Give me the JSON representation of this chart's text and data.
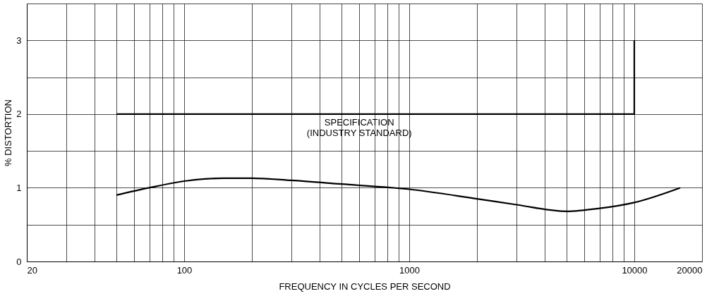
{
  "chart_data": {
    "type": "line",
    "xlabel": "FREQUENCY IN CYCLES PER SECOND",
    "ylabel": "% DISTORTION",
    "log": "x",
    "grid": true,
    "marker": "none",
    "line_style": "solid",
    "xlim": [
      20,
      20000
    ],
    "ylim": [
      0,
      3.5
    ],
    "xticks": [
      20,
      {
        "value": 30,
        "label": null
      },
      {
        "value": 40,
        "label": null
      },
      {
        "value": 50,
        "label": null
      },
      {
        "value": 60,
        "label": null
      },
      {
        "value": 70,
        "label": null
      },
      {
        "value": 80,
        "label": null
      },
      {
        "value": 90,
        "label": null
      },
      100,
      {
        "value": 200,
        "label": null
      },
      {
        "value": 300,
        "label": null
      },
      {
        "value": 400,
        "label": null
      },
      {
        "value": 500,
        "label": null
      },
      {
        "value": 600,
        "label": null
      },
      {
        "value": 700,
        "label": null
      },
      {
        "value": 800,
        "label": null
      },
      {
        "value": 900,
        "label": null
      },
      1000,
      {
        "value": 2000,
        "label": null
      },
      {
        "value": 3000,
        "label": null
      },
      {
        "value": 4000,
        "label": null
      },
      {
        "value": 5000,
        "label": null
      },
      {
        "value": 6000,
        "label": null
      },
      {
        "value": 7000,
        "label": null
      },
      {
        "value": 8000,
        "label": null
      },
      {
        "value": 9000,
        "label": null
      },
      10000,
      20000
    ],
    "yticks": [
      0,
      {
        "value": 0.5,
        "label": null
      },
      1,
      {
        "value": 1.5,
        "label": null
      },
      2,
      {
        "value": 2.5,
        "label": null
      },
      3,
      {
        "value": 3.5,
        "label": null
      }
    ],
    "series": [
      {
        "color": "#000000",
        "x": [
          50,
          10000,
          10000
        ],
        "values": [
          2,
          2,
          3
        ]
      },
      {
        "color": "#000000",
        "x": [
          50,
          70,
          100,
          150,
          200,
          300,
          500,
          1000,
          2000,
          3000,
          5000,
          7000,
          10000,
          16000
        ],
        "values": [
          0.9,
          1.0,
          1.09,
          1.13,
          1.13,
          1.1,
          1.05,
          0.98,
          0.85,
          0.77,
          0.68,
          0.72,
          0.8,
          1.0
        ]
      }
    ],
    "annotations": [
      {
        "text": "SPECIFICATION\n(INDUSTRY STANDARD)",
        "x": 600,
        "y": 2
      }
    ]
  }
}
